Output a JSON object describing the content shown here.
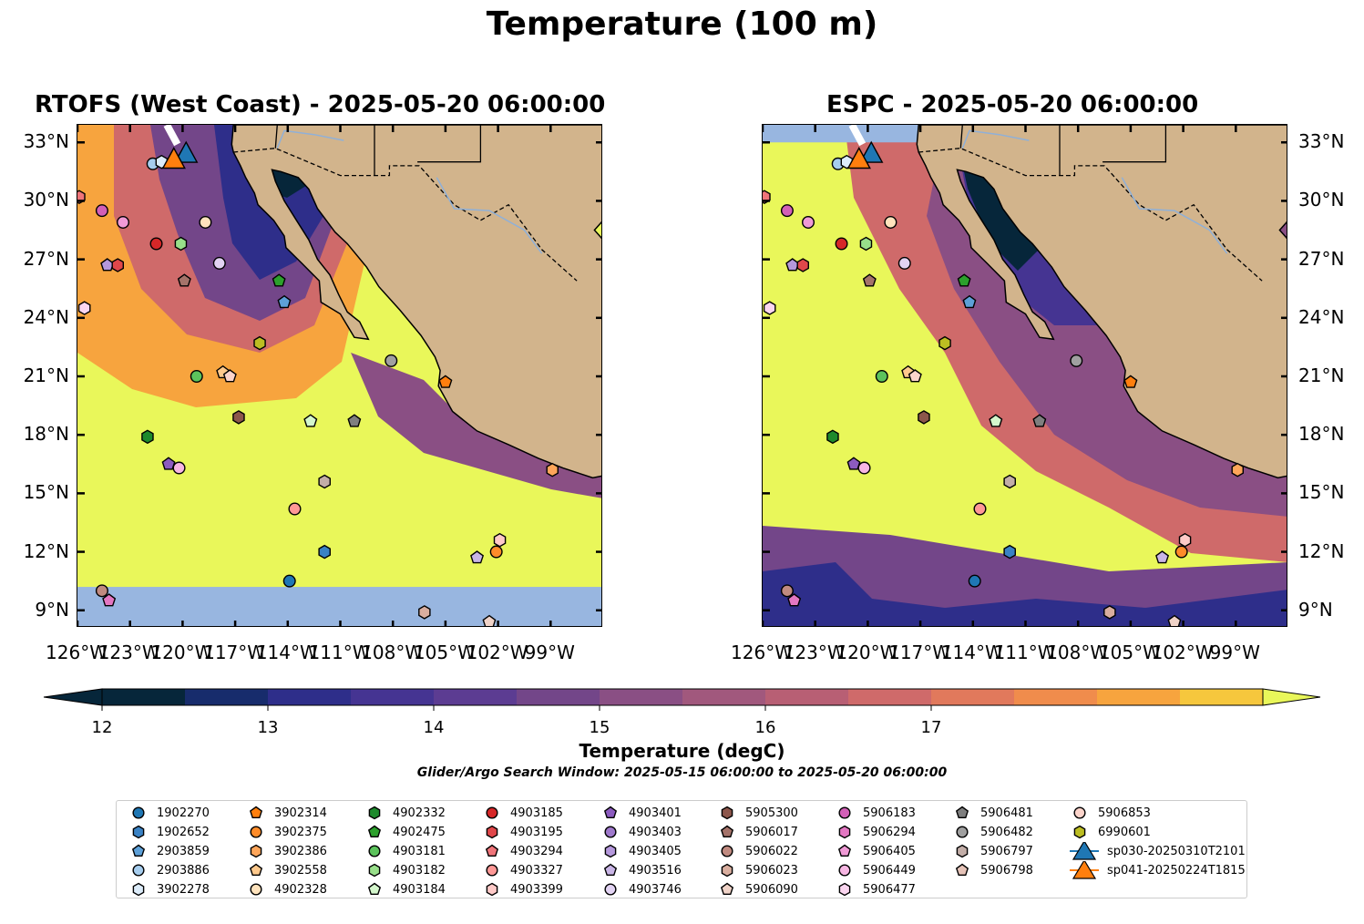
{
  "figure": {
    "title": "Temperature (100 m)",
    "colorbar_label": "Temperature (degC)",
    "search_window": "Glider/Argo Search Window: 2025-05-15 06:00:00 to 2025-05-20 06:00:00"
  },
  "colors": {
    "land": "#d2b48c",
    "ocean_nodata": "#98b6e0",
    "colormap": [
      "#06263a",
      "#172c6c",
      "#2e2e8a",
      "#453492",
      "#5c3c92",
      "#734689",
      "#8a4f84",
      "#a1587d",
      "#b85f74",
      "#cf6a6a",
      "#e1795c",
      "#f08c4c",
      "#f7a43e",
      "#f6c73d",
      "#e9f75a"
    ]
  },
  "colorbar": {
    "ticks": [
      "12",
      "13",
      "14",
      "15",
      "16",
      "17"
    ],
    "min": 12,
    "max": 17.5,
    "step": 0.5
  },
  "panels": [
    {
      "id": "rtofs",
      "title": "RTOFS (West Coast) - 2025-05-20 06:00:00"
    },
    {
      "id": "espc",
      "title": "ESPC - 2025-05-20 06:00:00"
    }
  ],
  "axes": {
    "lat_ticks": [
      "33°N",
      "30°N",
      "27°N",
      "24°N",
      "21°N",
      "18°N",
      "15°N",
      "12°N",
      "9°N"
    ],
    "lon_ticks": [
      "126°W",
      "123°W",
      "120°W",
      "117°W",
      "114°W",
      "111°W",
      "108°W",
      "105°W",
      "102°W",
      "99°W"
    ],
    "lon_range": [
      -126,
      -96
    ],
    "lat_range": [
      8.1,
      33.9
    ]
  },
  "legend": {
    "items": [
      {
        "label": "1902270",
        "marker": "circle",
        "color": "#1f77b4"
      },
      {
        "label": "1902652",
        "marker": "hexagon",
        "color": "#3a82c4"
      },
      {
        "label": "2903859",
        "marker": "pentagon",
        "color": "#5da0d8"
      },
      {
        "label": "2903886",
        "marker": "circle",
        "color": "#a6cdee"
      },
      {
        "label": "3902278",
        "marker": "hexagon",
        "color": "#dcecfa"
      },
      {
        "label": "3902314",
        "marker": "pentagon",
        "color": "#ff7f0e"
      },
      {
        "label": "3902375",
        "marker": "circle",
        "color": "#ff8c2a"
      },
      {
        "label": "3902386",
        "marker": "hexagon",
        "color": "#ffa65a"
      },
      {
        "label": "3902558",
        "marker": "pentagon",
        "color": "#ffc98c"
      },
      {
        "label": "4902328",
        "marker": "circle",
        "color": "#ffe3bd"
      },
      {
        "label": "4902332",
        "marker": "hexagon",
        "color": "#1e8a2c"
      },
      {
        "label": "4902475",
        "marker": "pentagon",
        "color": "#2ca02c"
      },
      {
        "label": "4903181",
        "marker": "circle",
        "color": "#5cc35c"
      },
      {
        "label": "4903182",
        "marker": "hexagon",
        "color": "#98df8a"
      },
      {
        "label": "4903184",
        "marker": "pentagon",
        "color": "#d4f7cc"
      },
      {
        "label": "4903185",
        "marker": "circle",
        "color": "#d62728"
      },
      {
        "label": "4903195",
        "marker": "hexagon",
        "color": "#e0474a"
      },
      {
        "label": "4903294",
        "marker": "pentagon",
        "color": "#ef7479"
      },
      {
        "label": "4903327",
        "marker": "circle",
        "color": "#ff9896"
      },
      {
        "label": "4903399",
        "marker": "hexagon",
        "color": "#ffcac8"
      },
      {
        "label": "4903401",
        "marker": "pentagon",
        "color": "#8c5bbf"
      },
      {
        "label": "4903403",
        "marker": "circle",
        "color": "#9f79cc"
      },
      {
        "label": "4903405",
        "marker": "hexagon",
        "color": "#b598dc"
      },
      {
        "label": "4903516",
        "marker": "pentagon",
        "color": "#c9b5e6"
      },
      {
        "label": "4903746",
        "marker": "circle",
        "color": "#e2d3f3"
      },
      {
        "label": "5905300",
        "marker": "hexagon",
        "color": "#8c564b"
      },
      {
        "label": "5906017",
        "marker": "pentagon",
        "color": "#a5736a"
      },
      {
        "label": "5906022",
        "marker": "circle",
        "color": "#c08a80"
      },
      {
        "label": "5906023",
        "marker": "hexagon",
        "color": "#d9ae9f"
      },
      {
        "label": "5906090",
        "marker": "pentagon",
        "color": "#f0d3c8"
      },
      {
        "label": "5906183",
        "marker": "circle",
        "color": "#d35fb7"
      },
      {
        "label": "5906294",
        "marker": "hexagon",
        "color": "#e377c2"
      },
      {
        "label": "5906405",
        "marker": "pentagon",
        "color": "#f09ad6"
      },
      {
        "label": "5906449",
        "marker": "circle",
        "color": "#f7b6e3"
      },
      {
        "label": "5906477",
        "marker": "hexagon",
        "color": "#fbd6f0"
      },
      {
        "label": "5906481",
        "marker": "pentagon",
        "color": "#7f7f7f"
      },
      {
        "label": "5906482",
        "marker": "circle",
        "color": "#a0a0a0"
      },
      {
        "label": "5906797",
        "marker": "hexagon",
        "color": "#c3aea8"
      },
      {
        "label": "5906798",
        "marker": "pentagon",
        "color": "#e6c3b8"
      },
      {
        "label": "5906853",
        "marker": "circle",
        "color": "#fcd4cb"
      },
      {
        "label": "6990601",
        "marker": "hexagon",
        "color": "#bcbd22"
      },
      {
        "label": "sp030-20250310T2101",
        "marker": "triangle",
        "color": "#1f77b4"
      },
      {
        "label": "sp041-20250224T1815",
        "marker": "triangle",
        "color": "#ff7f0e"
      }
    ]
  },
  "floats": [
    {
      "lon": -125.9,
      "lat": 30.2,
      "marker": "hexagon",
      "color": "#ef7479"
    },
    {
      "lon": -124.6,
      "lat": 29.5,
      "marker": "circle",
      "color": "#d35fb7"
    },
    {
      "lon": -123.4,
      "lat": 28.9,
      "marker": "circle",
      "color": "#f09ad6"
    },
    {
      "lon": -121.5,
      "lat": 27.8,
      "marker": "circle",
      "color": "#d62728"
    },
    {
      "lon": -120.1,
      "lat": 27.8,
      "marker": "hexagon",
      "color": "#98df8a"
    },
    {
      "lon": -118.7,
      "lat": 28.9,
      "marker": "circle",
      "color": "#ffe3bd"
    },
    {
      "lon": -124.3,
      "lat": 26.7,
      "marker": "pentagon",
      "color": "#b598dc"
    },
    {
      "lon": -123.7,
      "lat": 26.7,
      "marker": "hexagon",
      "color": "#e0474a"
    },
    {
      "lon": -117.9,
      "lat": 26.8,
      "marker": "circle",
      "color": "#e2d3f3"
    },
    {
      "lon": -119.9,
      "lat": 25.9,
      "marker": "pentagon",
      "color": "#a5736a"
    },
    {
      "lon": -114.5,
      "lat": 25.9,
      "marker": "pentagon",
      "color": "#2ca02c"
    },
    {
      "lon": -114.2,
      "lat": 24.8,
      "marker": "pentagon",
      "color": "#5da0d8"
    },
    {
      "lon": -125.6,
      "lat": 24.5,
      "marker": "hexagon",
      "color": "#fbd6f0"
    },
    {
      "lon": -115.6,
      "lat": 22.7,
      "marker": "hexagon",
      "color": "#bcbd22"
    },
    {
      "lon": -108.1,
      "lat": 21.8,
      "marker": "circle",
      "color": "#a0a0a0"
    },
    {
      "lon": -119.2,
      "lat": 21.0,
      "marker": "circle",
      "color": "#5cc35c"
    },
    {
      "lon": -117.7,
      "lat": 21.2,
      "marker": "pentagon",
      "color": "#ffc98c"
    },
    {
      "lon": -117.3,
      "lat": 21.0,
      "marker": "pentagon",
      "color": "#fcd4cb"
    },
    {
      "lon": -105.0,
      "lat": 20.7,
      "marker": "pentagon",
      "color": "#ff7f0e"
    },
    {
      "lon": -116.8,
      "lat": 18.9,
      "marker": "hexagon",
      "color": "#8c564b"
    },
    {
      "lon": -112.7,
      "lat": 18.7,
      "marker": "pentagon",
      "color": "#d4f7cc"
    },
    {
      "lon": -110.2,
      "lat": 18.7,
      "marker": "pentagon",
      "color": "#7f7f7f"
    },
    {
      "lon": -122.0,
      "lat": 17.9,
      "marker": "hexagon",
      "color": "#1e8a2c"
    },
    {
      "lon": -120.8,
      "lat": 16.5,
      "marker": "pentagon",
      "color": "#8c5bbf"
    },
    {
      "lon": -120.2,
      "lat": 16.3,
      "marker": "circle",
      "color": "#f7b6e3"
    },
    {
      "lon": -111.9,
      "lat": 15.6,
      "marker": "hexagon",
      "color": "#c3aea8"
    },
    {
      "lon": -98.9,
      "lat": 16.2,
      "marker": "hexagon",
      "color": "#ffa65a"
    },
    {
      "lon": -113.6,
      "lat": 14.2,
      "marker": "circle",
      "color": "#ff9896"
    },
    {
      "lon": -101.9,
      "lat": 12.6,
      "marker": "hexagon",
      "color": "#ffcac8"
    },
    {
      "lon": -111.9,
      "lat": 12.0,
      "marker": "hexagon",
      "color": "#3a82c4"
    },
    {
      "lon": -103.2,
      "lat": 11.7,
      "marker": "pentagon",
      "color": "#c9b5e6"
    },
    {
      "lon": -102.1,
      "lat": 12.0,
      "marker": "circle",
      "color": "#ff8c2a"
    },
    {
      "lon": -113.9,
      "lat": 10.5,
      "marker": "circle",
      "color": "#1f77b4"
    },
    {
      "lon": -124.6,
      "lat": 10.0,
      "marker": "circle",
      "color": "#c08a80"
    },
    {
      "lon": -124.2,
      "lat": 9.5,
      "marker": "pentagon",
      "color": "#e377c2"
    },
    {
      "lon": -106.2,
      "lat": 8.9,
      "marker": "hexagon",
      "color": "#d9ae9f"
    },
    {
      "lon": -102.5,
      "lat": 8.4,
      "marker": "pentagon",
      "color": "#f0d3c8"
    },
    {
      "lon": -121.7,
      "lat": 31.9,
      "marker": "circle",
      "color": "#a6cdee"
    },
    {
      "lon": -121.2,
      "lat": 32.0,
      "marker": "hexagon",
      "color": "#dcecfa"
    }
  ],
  "gliders": [
    {
      "lon": -119.8,
      "lat": 32.4,
      "marker": "triangle",
      "color": "#1f77b4"
    },
    {
      "lon": -120.5,
      "lat": 32.1,
      "marker": "triangle",
      "color": "#ff7f0e"
    }
  ]
}
